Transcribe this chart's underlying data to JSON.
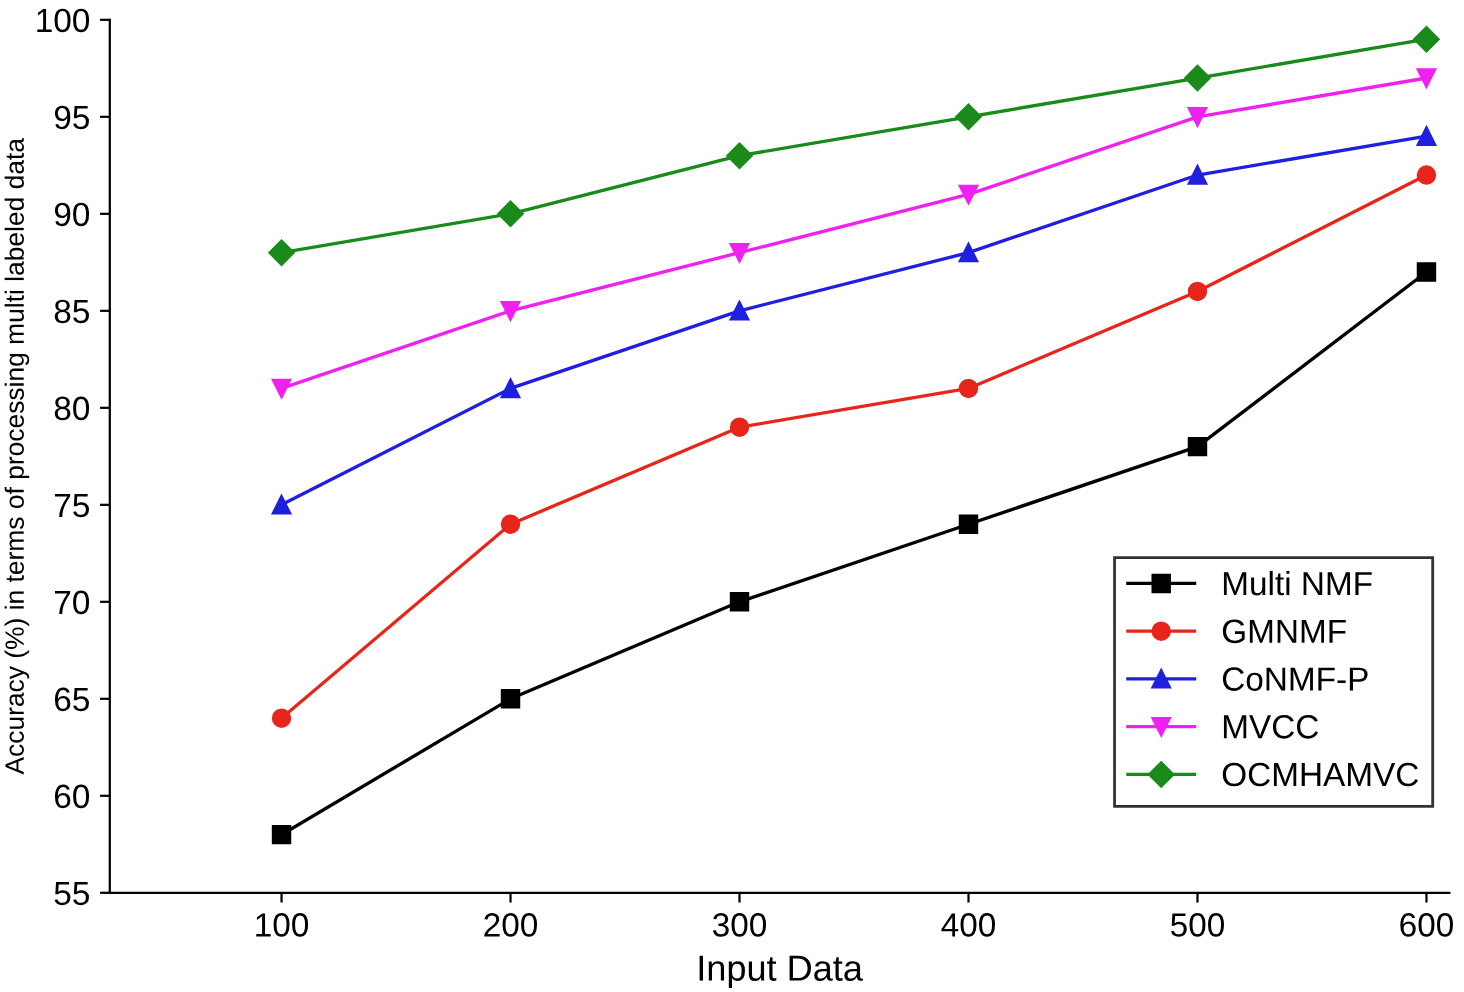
{
  "chart_data": {
    "type": "line",
    "xlabel": "Input Data",
    "ylabel": "Accuracy (%) in terms of processing multi labeled data",
    "x": [
      100,
      200,
      300,
      400,
      500,
      600
    ],
    "series": [
      {
        "name": "Multi NMF",
        "color": "#000000",
        "marker": "square",
        "values": [
          58,
          65,
          70,
          74,
          78,
          87
        ]
      },
      {
        "name": "GMNMF",
        "color": "#e8251a",
        "marker": "circle",
        "values": [
          64,
          74,
          79,
          81,
          86,
          92
        ]
      },
      {
        "name": "CoNMF-P",
        "color": "#1f1fe0",
        "marker": "triangle",
        "values": [
          75,
          81,
          85,
          88,
          92,
          94
        ]
      },
      {
        "name": "MVCC",
        "color": "#f020f0",
        "marker": "triangle_down",
        "values": [
          81,
          85,
          88,
          91,
          95,
          97
        ]
      },
      {
        "name": "OCMHAMVC",
        "color": "#1a8a1a",
        "marker": "diamond",
        "values": [
          88,
          90,
          93,
          95,
          97,
          99
        ]
      }
    ],
    "xlim": [
      25,
      610
    ],
    "xticks": [
      100,
      200,
      300,
      400,
      500,
      600
    ],
    "ylim": [
      55,
      100
    ],
    "yticks": [
      55,
      60,
      65,
      70,
      75,
      80,
      85,
      90,
      95,
      100
    ],
    "grid": false,
    "legend": "bottom right",
    "line_style": "solid"
  }
}
